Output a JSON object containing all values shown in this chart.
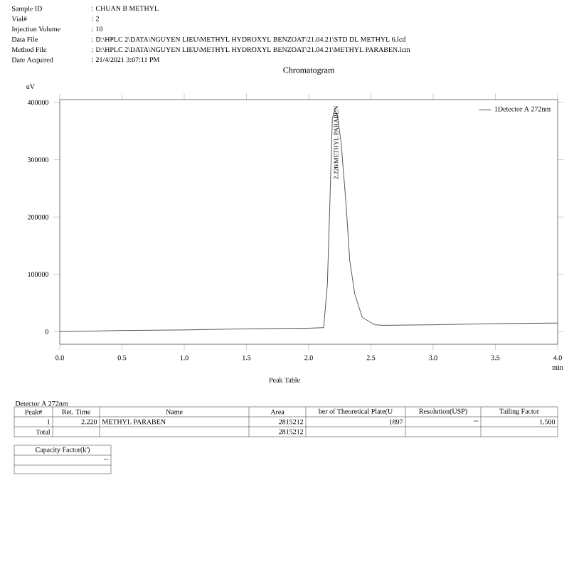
{
  "chart_data": {
    "type": "line",
    "title": "Chromatogram",
    "xlabel": "min",
    "ylabel": "uV",
    "x": [
      0,
      0.5,
      1.0,
      1.5,
      2.0,
      2.12,
      2.15,
      2.17,
      2.19,
      2.21,
      2.23,
      2.26,
      2.3,
      2.33,
      2.37,
      2.43,
      2.53,
      2.6,
      3.0,
      3.5,
      4.0
    ],
    "series": [
      {
        "name": "1Detector A 272nm",
        "color": "#555555",
        "values": [
          0,
          2000,
          3000,
          5000,
          6000,
          7000,
          82000,
          223000,
          372000,
          387000,
          377000,
          331000,
          223000,
          124000,
          66000,
          25000,
          12000,
          11000,
          12000,
          14000,
          15000
        ]
      }
    ],
    "xlim": [
      0,
      4
    ],
    "ylim": [
      -22000,
      405000
    ],
    "xticks": [
      {
        "value": 0,
        "label": "0.0"
      },
      {
        "value": 0.5,
        "label": "0.5"
      },
      {
        "value": 1,
        "label": "1.0"
      },
      {
        "value": 1.5,
        "label": "1.5"
      },
      {
        "value": 2,
        "label": "2.0"
      },
      {
        "value": 2.5,
        "label": "2.5"
      },
      {
        "value": 3,
        "label": "3.0"
      },
      {
        "value": 3.5,
        "label": "3.5"
      },
      {
        "value": 4,
        "label": "4.0"
      }
    ],
    "yticks": [
      0,
      100000,
      200000,
      300000,
      400000
    ],
    "grid": false,
    "legend": "top right",
    "marker": "none",
    "line_style": "solid",
    "annotations": [
      "Sample ID",
      ": CHUAN B METHYL",
      "Vial#",
      ": 2",
      "Injection Volume",
      ": 10",
      "Data File",
      ": D:\\HPLC 2\\DATA\\NGUYEN LIEU\\METHYL HYDROXYL BENZOAT\\21.04.21\\STD DL METHYL 6.lcd",
      "Method File",
      ": D:\\HPLC 2\\DATA\\NGUYEN LIEU\\METHYL HYDROXYL BENZOAT\\21.04.21\\METHYL PARABEN.lcm",
      "Date Acquired",
      ": 21/4/2021 3:07:11 PM",
      {
        "text": "2.220/METHYL PARABEN",
        "x": 2.22,
        "y": 387000
      },
      "Peak Table",
      "Detector A 272nm",
      "Peak#",
      "Ret. Time",
      "Name",
      "Area",
      "ber of Theoretical Plate(U",
      "Resolution(USP)",
      "Tailing Factor",
      "1",
      "2.220",
      "METHYL PARABEN",
      "2815212",
      "1897",
      "--",
      "1.500",
      "Total",
      "2815212",
      "Capacity Factor(k')",
      "--"
    ]
  }
}
